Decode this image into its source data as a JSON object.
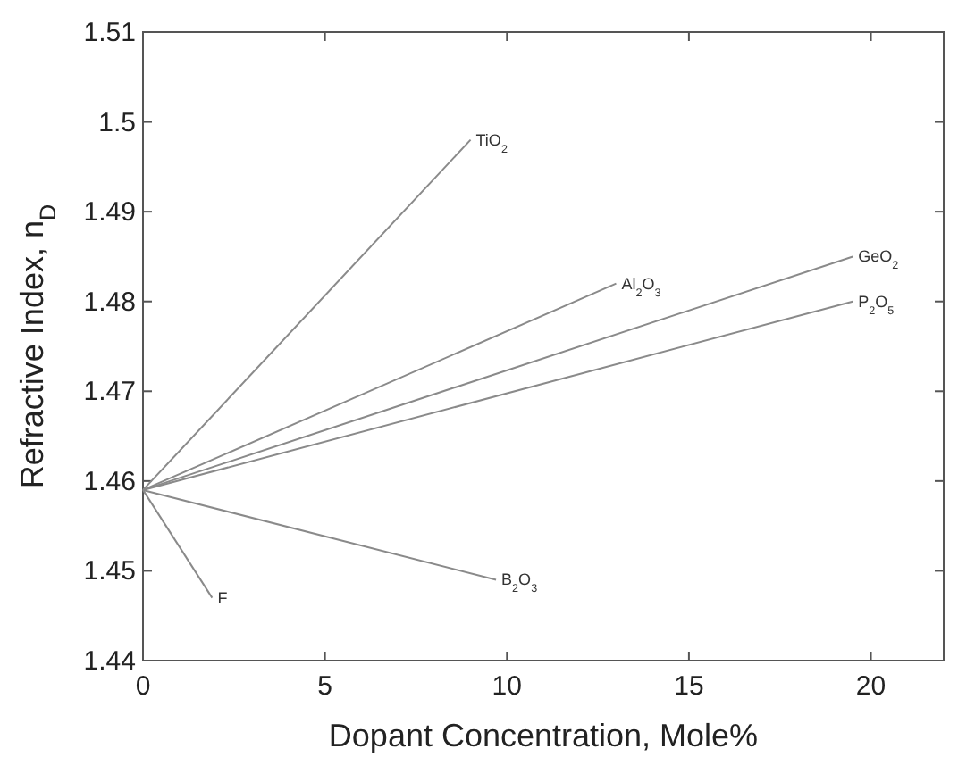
{
  "chart_data": {
    "type": "line",
    "xlabel": "Dopant Concentration, Mole%",
    "ylabel": "Refractive Index, n$_{D}$",
    "xlim": [
      0,
      22
    ],
    "ylim": [
      1.44,
      1.51
    ],
    "xticks": [
      0,
      5,
      10,
      15,
      20
    ],
    "yticks": [
      1.44,
      1.45,
      1.46,
      1.47,
      1.48,
      1.49,
      1.5,
      1.51
    ],
    "grid": false,
    "legend": false,
    "marker": "none",
    "line_style": "solid",
    "series": [
      {
        "name": "TiO$_{2}$",
        "color": "#8a8a8a",
        "x": [
          0,
          9
        ],
        "values": [
          1.459,
          1.498
        ]
      },
      {
        "name": "Al$_{2}$O$_{3}$",
        "color": "#8a8a8a",
        "x": [
          0,
          13
        ],
        "values": [
          1.459,
          1.482
        ]
      },
      {
        "name": "GeO$_{2}$",
        "color": "#8a8a8a",
        "x": [
          0,
          19.5
        ],
        "values": [
          1.459,
          1.485
        ]
      },
      {
        "name": "P$_{2}$O$_{5}$",
        "color": "#8a8a8a",
        "x": [
          0,
          19.5
        ],
        "values": [
          1.459,
          1.48
        ]
      },
      {
        "name": "B$_{2}$O$_{3}$",
        "color": "#8a8a8a",
        "x": [
          0,
          9.7
        ],
        "values": [
          1.459,
          1.449
        ]
      },
      {
        "name": "F",
        "color": "#8a8a8a",
        "x": [
          0,
          1.9
        ],
        "values": [
          1.459,
          1.447
        ]
      }
    ]
  }
}
